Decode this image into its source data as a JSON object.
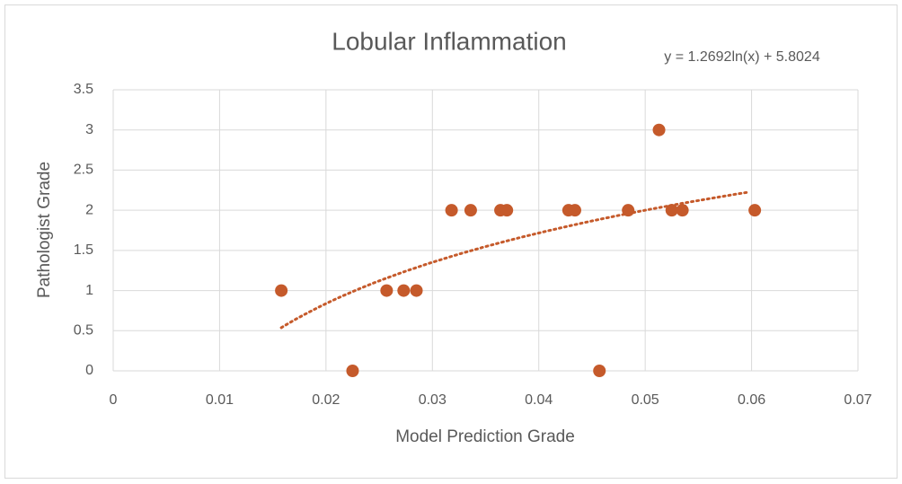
{
  "chart_data": {
    "type": "scatter",
    "title": "Lobular Inflammation",
    "x_label": "Model Prediction Grade",
    "y_label": "Pathologist Grade",
    "trendline": {
      "type": "log",
      "a": 1.2692,
      "b": 5.8024,
      "xrange": [
        0.0158,
        0.0598
      ],
      "label": "y = 1.2692ln(x) + 5.8024",
      "color": "#c55a2b"
    },
    "series": [
      {
        "name": "Pathologist Grade",
        "color": "#c55a2b",
        "x": [
          0.0158,
          0.0225,
          0.0257,
          0.0273,
          0.0285,
          0.0318,
          0.0336,
          0.0364,
          0.037,
          0.0428,
          0.0434,
          0.0457,
          0.0484,
          0.0513,
          0.0525,
          0.0535,
          0.0603
        ],
        "values": [
          1,
          0,
          1,
          1,
          1,
          2,
          2,
          2,
          2,
          2,
          2,
          0,
          2,
          3,
          2,
          2,
          2
        ]
      }
    ],
    "xlim": [
      0,
      0.07
    ],
    "xticks": [
      0,
      0.01,
      0.02,
      0.03,
      0.04,
      0.05,
      0.06,
      0.07
    ],
    "ylim": [
      0,
      3.5
    ],
    "yticks": [
      0,
      0.5,
      1,
      1.5,
      2,
      2.5,
      3,
      3.5
    ],
    "grid": true
  }
}
